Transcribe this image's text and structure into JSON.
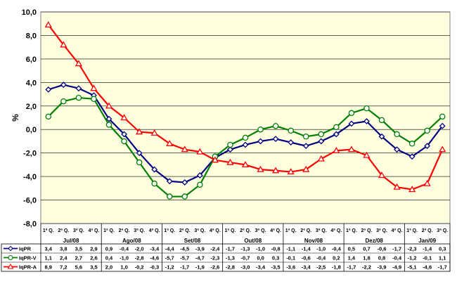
{
  "chart_data": {
    "type": "line",
    "ylabel": "%",
    "ylim": [
      -8,
      10
    ],
    "yticks": [
      "10,0",
      "8,0",
      "6,0",
      "4,0",
      "2,0",
      "0,0",
      "-2,0",
      "-4,0",
      "-6,0",
      "-8,0"
    ],
    "grid": true,
    "legend": "table-left",
    "week_labels": [
      "1ª Q.",
      "2ª Q.",
      "3ª Q.",
      "4ª Q."
    ],
    "months": [
      {
        "label": "Jul/08",
        "weeks": 4
      },
      {
        "label": "Ago/08",
        "weeks": 4
      },
      {
        "label": "Set/08",
        "weeks": 4
      },
      {
        "label": "Out/08",
        "weeks": 4
      },
      {
        "label": "Nov/08",
        "weeks": 4
      },
      {
        "label": "Dez/08",
        "weeks": 4
      },
      {
        "label": "Jan/09",
        "weeks": 3
      }
    ],
    "categories": [
      "1ª Q.",
      "2ª Q.",
      "3ª Q.",
      "4ª Q.",
      "1ª Q.",
      "2ª Q.",
      "3ª Q.",
      "4ª Q.",
      "1ª Q.",
      "2ª Q.",
      "3ª Q.",
      "4ª Q.",
      "1ª Q.",
      "2ª Q.",
      "3ª Q.",
      "4ª Q.",
      "1ª Q.",
      "2ª Q.",
      "3ª Q.",
      "4ª Q.",
      "1ª Q.",
      "2ª Q.",
      "3ª Q.",
      "4ª Q.",
      "1ª Q.",
      "2ª Q.",
      "3ª Q."
    ],
    "series": [
      {
        "name": "IqPR",
        "color": "#000080",
        "marker": "diamond",
        "values": [
          3.4,
          3.8,
          3.5,
          2.9,
          0.9,
          -0.4,
          -2.0,
          -3.4,
          -4.4,
          -4.5,
          -3.9,
          -2.4,
          -1.7,
          -1.3,
          -1.0,
          -0.8,
          -1.1,
          -1.4,
          -1.0,
          -0.4,
          0.5,
          0.7,
          -0.6,
          -1.7,
          -2.3,
          -1.4,
          0.3
        ],
        "labels": [
          "3,4",
          "3,8",
          "3,5",
          "2,9",
          "0,9",
          "-0,4",
          "-2,0",
          "-3,4",
          "-4,4",
          "-4,5",
          "-3,9",
          "-2,4",
          "-1,7",
          "-1,3",
          "-1,0",
          "-0,8",
          "-1,1",
          "-1,4",
          "-1,0",
          "-0,4",
          "0,5",
          "0,7",
          "-0,6",
          "-1,7",
          "-2,3",
          "-1,4",
          "0,3"
        ]
      },
      {
        "name": "IqPR-V",
        "color": "#008000",
        "marker": "circle",
        "values": [
          1.1,
          2.4,
          2.7,
          2.6,
          0.4,
          -1.0,
          -2.8,
          -4.6,
          -5.7,
          -5.7,
          -4.7,
          -2.3,
          -1.3,
          -0.7,
          0.0,
          0.3,
          -0.1,
          -0.6,
          -0.4,
          0.2,
          1.4,
          1.8,
          0.8,
          -0.4,
          -1.2,
          -0.1,
          1.1
        ],
        "labels": [
          "1,1",
          "2,4",
          "2,7",
          "2,6",
          "0,4",
          "-1,0",
          "-2,8",
          "-4,6",
          "-5,7",
          "-5,7",
          "-4,7",
          "-2,3",
          "-1,3",
          "-0,7",
          "0,0",
          "0,3",
          "-0,1",
          "-0,6",
          "-0,4",
          "0,2",
          "1,4",
          "1,8",
          "0,8",
          "-0,4",
          "-1,2",
          "-0,1",
          "1,1"
        ]
      },
      {
        "name": "IqPR-A",
        "color": "#ff0000",
        "marker": "triangle",
        "values": [
          8.9,
          7.2,
          5.6,
          3.5,
          2.0,
          1.0,
          -0.2,
          -0.3,
          -1.2,
          -1.7,
          -1.9,
          -2.6,
          -2.8,
          -3.0,
          -3.4,
          -3.5,
          -3.6,
          -3.4,
          -2.5,
          -1.8,
          -1.7,
          -2.2,
          -3.9,
          -4.9,
          -5.1,
          -4.6,
          -1.7
        ],
        "labels": [
          "8,9",
          "7,2",
          "5,6",
          "3,5",
          "2,0",
          "1,0",
          "-0,2",
          "-0,3",
          "-1,2",
          "-1,7",
          "-1,9",
          "-2,6",
          "-2,8",
          "-3,0",
          "-3,4",
          "-3,5",
          "-3,6",
          "-3,4",
          "-2,5",
          "-1,8",
          "-1,7",
          "-2,2",
          "-3,9",
          "-4,9",
          "-5,1",
          "-4,6",
          "-1,7"
        ]
      }
    ]
  },
  "colors": {
    "plot_bg": "#ffffe0",
    "page_bg": "#ffffff",
    "grid": "#000000"
  }
}
